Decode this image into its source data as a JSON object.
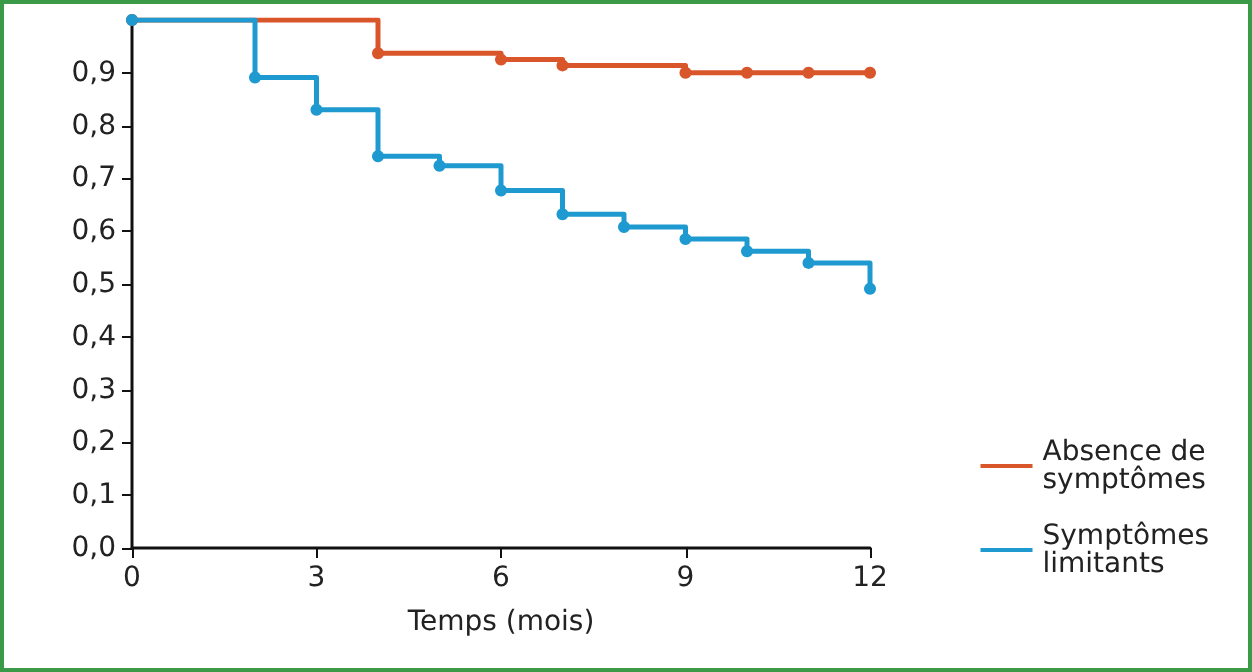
{
  "chart_data": {
    "type": "step",
    "xlabel": "Temps (mois)",
    "series": [
      {
        "name": "Absence de symptômes",
        "color": "#d9562a",
        "x": [
          0,
          4,
          6,
          7,
          9,
          10,
          11,
          12
        ],
        "values": [
          1,
          0.937,
          0.925,
          0.914,
          0.9,
          0.9,
          0.9,
          0.9
        ]
      },
      {
        "name": "Symptômes limitants",
        "color": "#1f9ad1",
        "x": [
          0,
          2,
          3,
          4,
          5,
          6,
          7,
          8,
          9,
          10,
          11,
          12
        ],
        "values": [
          1,
          0.891,
          0.83,
          0.742,
          0.724,
          0.677,
          0.632,
          0.608,
          0.585,
          0.562,
          0.54,
          0.491
        ]
      }
    ],
    "xlim": [
      0,
      12
    ],
    "xticks": [
      0,
      3,
      6,
      9,
      12
    ],
    "ylim": [
      0,
      1
    ],
    "yticks": [
      {
        "value": 0,
        "label": "0,0"
      },
      {
        "value": 0.1,
        "label": "0,1"
      },
      {
        "value": 0.2,
        "label": "0,2"
      },
      {
        "value": 0.3,
        "label": "0,3"
      },
      {
        "value": 0.4,
        "label": "0,4"
      },
      {
        "value": 0.5,
        "label": "0,5"
      },
      {
        "value": 0.6,
        "label": "0,6"
      },
      {
        "value": 0.7,
        "label": "0,7"
      },
      {
        "value": 0.8,
        "label": "0,8"
      },
      {
        "value": 0.9,
        "label": "0,9"
      }
    ],
    "grid": false,
    "legend": "bottom right",
    "marker": "circle",
    "line_style": "solid"
  }
}
